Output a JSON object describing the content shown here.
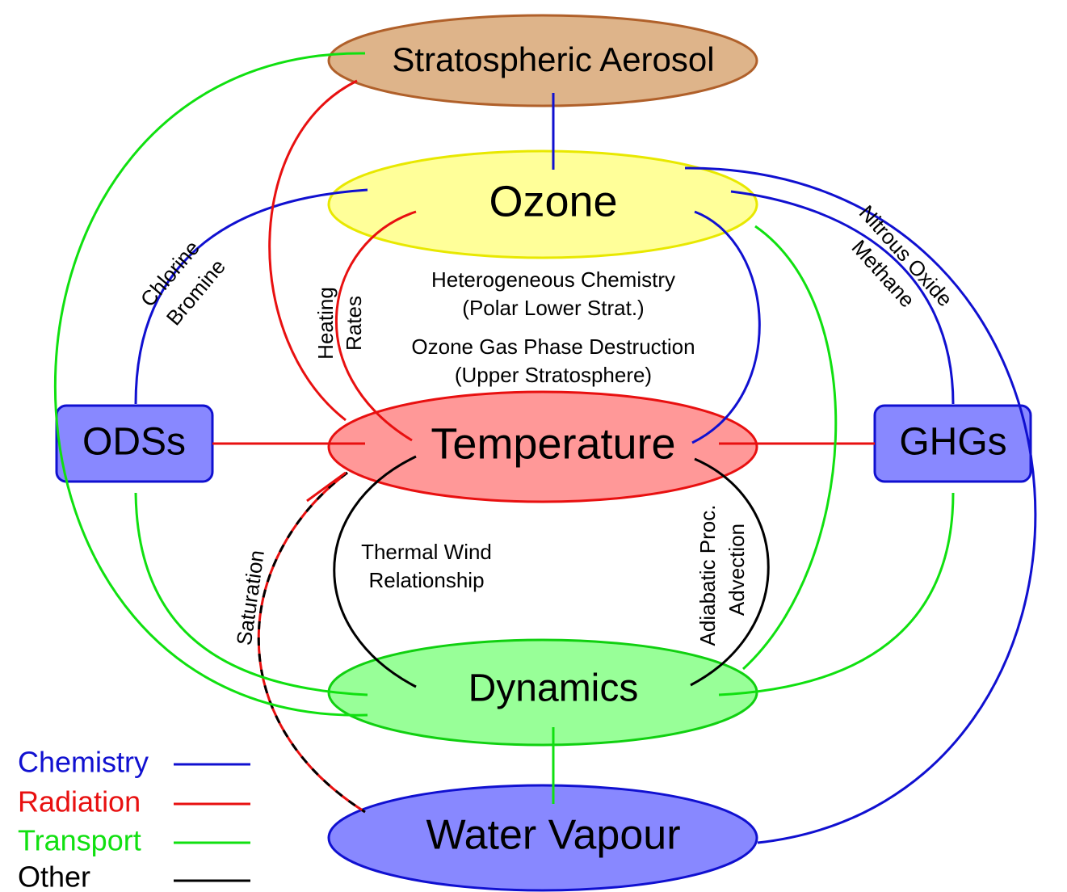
{
  "nodes": [
    {
      "label": "Stratospheric Aerosol"
    },
    {
      "label": "Ozone"
    },
    {
      "label": "Temperature"
    },
    {
      "label": "Dynamics"
    },
    {
      "label": "Water Vapour"
    },
    {
      "label": "ODSs"
    },
    {
      "label": "GHGs"
    }
  ],
  "edge_labels": {
    "chlorine": "Chlorine",
    "bromine": "Bromine",
    "heating": "Heating",
    "rates": "Rates",
    "heterogeneous": [
      "Heterogeneous Chemistry",
      "(Polar Lower Strat.)"
    ],
    "gas_phase": [
      "Ozone Gas Phase Destruction",
      "(Upper Stratosphere)"
    ],
    "nitrous_oxide": "Nitrous Oxide",
    "methane": "Methane",
    "saturation": "Saturation",
    "thermal_wind": [
      "Thermal Wind",
      "Relationship"
    ],
    "adiabatic": "Adiabatic Proc.",
    "advection": "Advection"
  },
  "legend": [
    "Chemistry",
    "Radiation",
    "Transport",
    "Other"
  ]
}
